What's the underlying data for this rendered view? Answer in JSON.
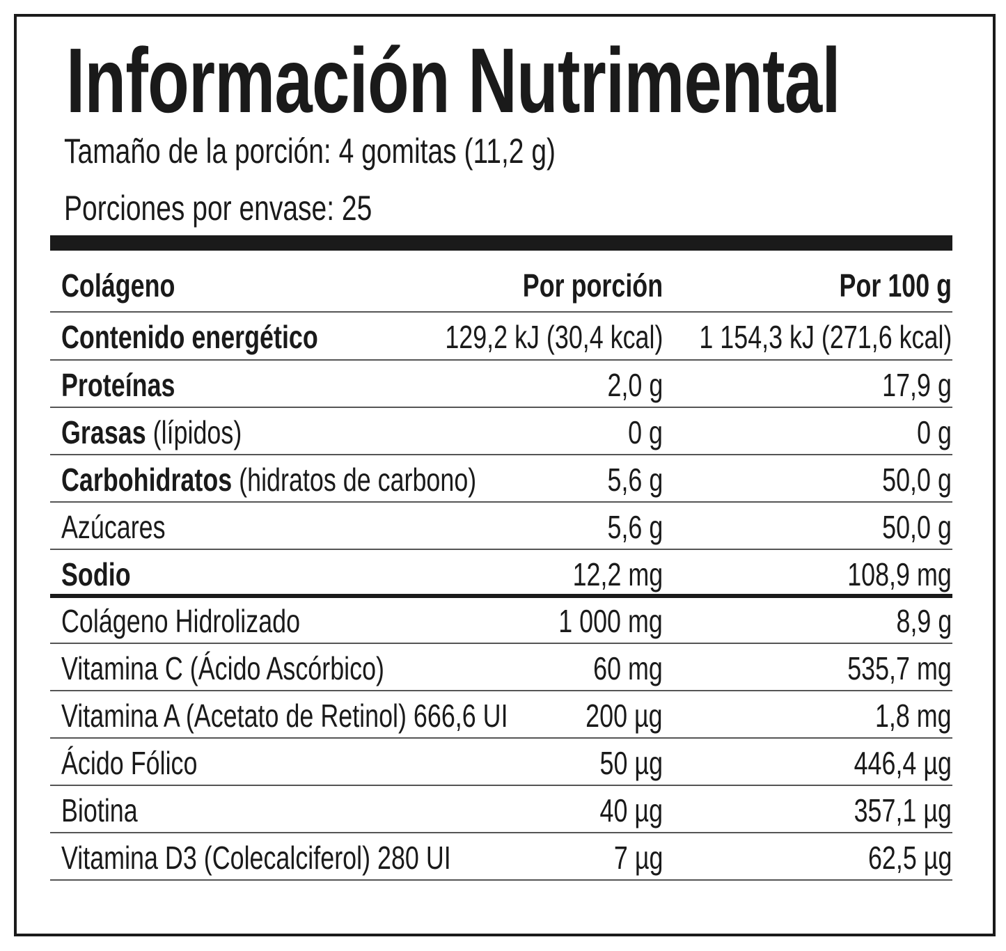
{
  "title": "Información Nutrimental",
  "serving_size": "Tamaño de la porción: 4 gomitas (11,2 g)",
  "servings_per_container": "Porciones por envase: 25",
  "header": {
    "name": "Colágeno",
    "per_serving": "Por porción",
    "per_100g": "Por 100 g"
  },
  "rows": [
    {
      "bold": "Contenido energético",
      "rest": "",
      "per_serving": "129,2 kJ (30,4 kcal)",
      "per_100g": "1 154,3 kJ (271,6 kcal)"
    },
    {
      "bold": "Proteínas",
      "rest": "",
      "per_serving": "2,0 g",
      "per_100g": "17,9 g"
    },
    {
      "bold": "Grasas",
      "rest": " (lípidos)",
      "per_serving": "0 g",
      "per_100g": "0 g"
    },
    {
      "bold": "Carbohidratos",
      "rest": " (hidratos de carbono)",
      "per_serving": "5,6 g",
      "per_100g": "50,0 g"
    },
    {
      "bold": "",
      "rest": "Azúcares",
      "per_serving": "5,6 g",
      "per_100g": "50,0 g"
    },
    {
      "bold": "Sodio",
      "rest": "",
      "per_serving": "12,2 mg",
      "per_100g": "108,9 mg"
    },
    {
      "bold": "",
      "rest": "Colágeno Hidrolizado",
      "per_serving": "1 000 mg",
      "per_100g": "8,9 g"
    },
    {
      "bold": "",
      "rest": "Vitamina C (Ácido Ascórbico)",
      "per_serving": "60 mg",
      "per_100g": "535,7 mg"
    },
    {
      "bold": "",
      "rest": "Vitamina A (Acetato de Retinol) 666,6 UI",
      "per_serving": "200 µg",
      "per_100g": "1,8 mg"
    },
    {
      "bold": "",
      "rest": "Ácido Fólico",
      "per_serving": "50 µg",
      "per_100g": "446,4 µg"
    },
    {
      "bold": "",
      "rest": "Biotina",
      "per_serving": "40 µg",
      "per_100g": "357,1 µg"
    },
    {
      "bold": "",
      "rest": "Vitamina D3 (Colecalciferol) 280 UI",
      "per_serving": "7 µg",
      "per_100g": "62,5 µg"
    }
  ]
}
